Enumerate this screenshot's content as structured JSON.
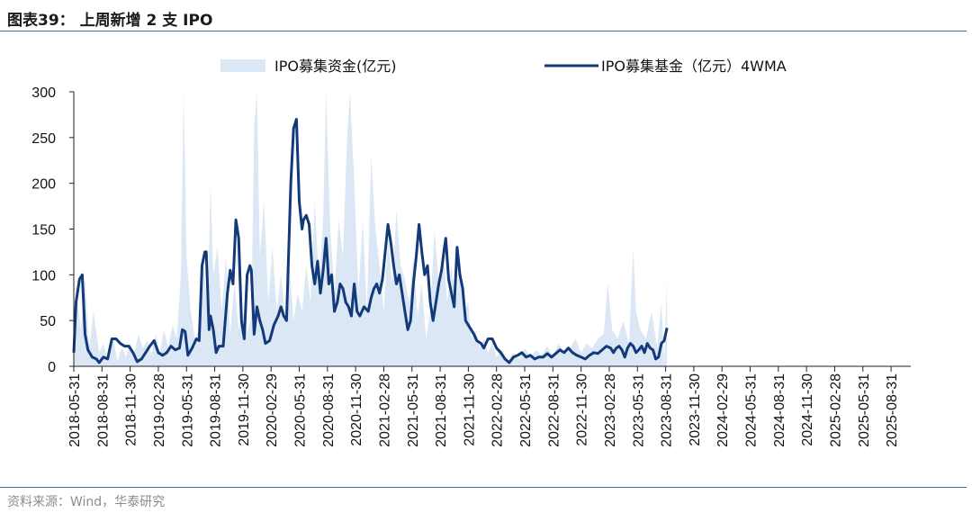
{
  "header": {
    "title": "图表39：   上周新增 2 支 IPO"
  },
  "footer": {
    "source": "资料来源：Wind，华泰研究"
  },
  "colors": {
    "area": "#dbe7f4",
    "line": "#12397a",
    "axis": "#222222",
    "rule": "#3a6ea5"
  },
  "chart_data": {
    "type": "area",
    "legend_position": "top",
    "grid": false,
    "ylim": [
      0,
      300
    ],
    "yticks": [
      0,
      50,
      100,
      150,
      200,
      250,
      300
    ],
    "xtick_labels": [
      "2018-05-31",
      "2018-08-31",
      "2018-11-30",
      "2019-02-28",
      "2019-05-31",
      "2019-08-31",
      "2019-11-30",
      "2020-02-29",
      "2020-05-31",
      "2020-08-31",
      "2020-11-30",
      "2021-02-28",
      "2021-05-31",
      "2021-08-31",
      "2021-11-30",
      "2022-02-28",
      "2022-05-31",
      "2022-08-31",
      "2022-11-30",
      "2023-02-28",
      "2023-05-31",
      "2023-08-31",
      "2023-11-30",
      "2024-02-29",
      "2024-05-31",
      "2024-08-31",
      "2024-11-30",
      "2025-02-28",
      "2025-05-31",
      "2025-08-31"
    ],
    "series": [
      {
        "name": "IPO募集资金(亿元)",
        "kind": "area",
        "values": [
          [
            0,
            10
          ],
          [
            0.1,
            80
          ],
          [
            0.25,
            40
          ],
          [
            0.4,
            95
          ],
          [
            0.55,
            20
          ],
          [
            0.7,
            60
          ],
          [
            0.9,
            15
          ],
          [
            1.05,
            25
          ],
          [
            1.2,
            8
          ],
          [
            1.4,
            30
          ],
          [
            1.55,
            5
          ],
          [
            1.7,
            20
          ],
          [
            1.85,
            10
          ],
          [
            2.0,
            25
          ],
          [
            2.15,
            15
          ],
          [
            2.3,
            35
          ],
          [
            2.45,
            20
          ],
          [
            2.6,
            28
          ],
          [
            2.75,
            12
          ],
          [
            2.9,
            35
          ],
          [
            3.05,
            15
          ],
          [
            3.2,
            40
          ],
          [
            3.35,
            20
          ],
          [
            3.5,
            45
          ],
          [
            3.65,
            30
          ],
          [
            3.8,
            100
          ],
          [
            3.9,
            300
          ],
          [
            4.0,
            120
          ],
          [
            4.15,
            60
          ],
          [
            4.3,
            30
          ],
          [
            4.45,
            40
          ],
          [
            4.6,
            110
          ],
          [
            4.75,
            60
          ],
          [
            4.85,
            200
          ],
          [
            4.95,
            100
          ],
          [
            5.1,
            130
          ],
          [
            5.25,
            60
          ],
          [
            5.4,
            120
          ],
          [
            5.55,
            35
          ],
          [
            5.7,
            90
          ],
          [
            5.85,
            40
          ],
          [
            6.0,
            60
          ],
          [
            6.15,
            35
          ],
          [
            6.3,
            55
          ],
          [
            6.4,
            260
          ],
          [
            6.5,
            300
          ],
          [
            6.6,
            120
          ],
          [
            6.75,
            180
          ],
          [
            6.9,
            70
          ],
          [
            7.05,
            130
          ],
          [
            7.2,
            60
          ],
          [
            7.35,
            100
          ],
          [
            7.5,
            55
          ],
          [
            7.65,
            110
          ],
          [
            7.8,
            50
          ],
          [
            7.95,
            80
          ],
          [
            8.1,
            60
          ],
          [
            8.25,
            110
          ],
          [
            8.4,
            70
          ],
          [
            8.55,
            180
          ],
          [
            8.7,
            90
          ],
          [
            8.85,
            160
          ],
          [
            8.95,
            300
          ],
          [
            9.1,
            150
          ],
          [
            9.25,
            80
          ],
          [
            9.4,
            160
          ],
          [
            9.55,
            120
          ],
          [
            9.7,
            250
          ],
          [
            9.8,
            300
          ],
          [
            9.95,
            200
          ],
          [
            10.1,
            80
          ],
          [
            10.25,
            160
          ],
          [
            10.4,
            60
          ],
          [
            10.55,
            230
          ],
          [
            10.7,
            150
          ],
          [
            10.85,
            110
          ],
          [
            11.0,
            60
          ],
          [
            11.15,
            140
          ],
          [
            11.3,
            90
          ],
          [
            11.45,
            170
          ],
          [
            11.6,
            110
          ],
          [
            11.75,
            95
          ],
          [
            11.9,
            70
          ],
          [
            12.05,
            120
          ],
          [
            12.2,
            55
          ],
          [
            12.35,
            90
          ],
          [
            12.5,
            30
          ],
          [
            12.65,
            60
          ],
          [
            12.8,
            150
          ],
          [
            12.95,
            90
          ],
          [
            13.1,
            130
          ],
          [
            13.25,
            70
          ],
          [
            13.4,
            110
          ],
          [
            13.55,
            65
          ],
          [
            13.7,
            120
          ],
          [
            13.85,
            60
          ],
          [
            14.0,
            70
          ],
          [
            14.1,
            30
          ],
          [
            14.25,
            40
          ],
          [
            14.4,
            20
          ],
          [
            14.55,
            30
          ],
          [
            14.7,
            15
          ],
          [
            14.85,
            25
          ],
          [
            15.0,
            10
          ],
          [
            15.2,
            18
          ],
          [
            15.4,
            5
          ],
          [
            15.6,
            15
          ],
          [
            15.8,
            8
          ],
          [
            16.0,
            20
          ],
          [
            16.2,
            10
          ],
          [
            16.4,
            18
          ],
          [
            16.6,
            12
          ],
          [
            16.8,
            22
          ],
          [
            17.0,
            10
          ],
          [
            17.2,
            25
          ],
          [
            17.4,
            15
          ],
          [
            17.6,
            20
          ],
          [
            17.8,
            30
          ],
          [
            18.0,
            15
          ],
          [
            18.2,
            25
          ],
          [
            18.4,
            20
          ],
          [
            18.6,
            30
          ],
          [
            18.8,
            35
          ],
          [
            18.95,
            90
          ],
          [
            19.1,
            40
          ],
          [
            19.3,
            30
          ],
          [
            19.5,
            50
          ],
          [
            19.7,
            25
          ],
          [
            19.85,
            130
          ],
          [
            19.95,
            60
          ],
          [
            20.1,
            40
          ],
          [
            20.3,
            30
          ],
          [
            20.5,
            60
          ],
          [
            20.7,
            20
          ],
          [
            20.85,
            70
          ],
          [
            20.95,
            5
          ],
          [
            21.05,
            95
          ]
        ]
      },
      {
        "name": "IPO募集基金（亿元）4WMA",
        "kind": "line",
        "values": [
          [
            0,
            15
          ],
          [
            0.08,
            70
          ],
          [
            0.2,
            95
          ],
          [
            0.3,
            100
          ],
          [
            0.4,
            35
          ],
          [
            0.5,
            18
          ],
          [
            0.65,
            10
          ],
          [
            0.8,
            8
          ],
          [
            0.9,
            4
          ],
          [
            1.05,
            10
          ],
          [
            1.2,
            8
          ],
          [
            1.35,
            30
          ],
          [
            1.5,
            30
          ],
          [
            1.65,
            25
          ],
          [
            1.8,
            22
          ],
          [
            1.95,
            22
          ],
          [
            2.1,
            15
          ],
          [
            2.25,
            5
          ],
          [
            2.4,
            8
          ],
          [
            2.55,
            15
          ],
          [
            2.7,
            22
          ],
          [
            2.85,
            28
          ],
          [
            3.0,
            15
          ],
          [
            3.15,
            12
          ],
          [
            3.3,
            15
          ],
          [
            3.45,
            22
          ],
          [
            3.6,
            18
          ],
          [
            3.75,
            20
          ],
          [
            3.85,
            40
          ],
          [
            3.95,
            38
          ],
          [
            4.05,
            12
          ],
          [
            4.2,
            20
          ],
          [
            4.35,
            30
          ],
          [
            4.45,
            28
          ],
          [
            4.55,
            110
          ],
          [
            4.65,
            125
          ],
          [
            4.7,
            125
          ],
          [
            4.8,
            40
          ],
          [
            4.85,
            55
          ],
          [
            4.95,
            40
          ],
          [
            5.05,
            15
          ],
          [
            5.15,
            22
          ],
          [
            5.3,
            22
          ],
          [
            5.45,
            80
          ],
          [
            5.55,
            105
          ],
          [
            5.65,
            90
          ],
          [
            5.75,
            160
          ],
          [
            5.85,
            140
          ],
          [
            5.95,
            50
          ],
          [
            6.05,
            30
          ],
          [
            6.15,
            100
          ],
          [
            6.25,
            110
          ],
          [
            6.3,
            105
          ],
          [
            6.4,
            35
          ],
          [
            6.5,
            65
          ],
          [
            6.6,
            50
          ],
          [
            6.7,
            40
          ],
          [
            6.8,
            25
          ],
          [
            6.95,
            28
          ],
          [
            7.1,
            45
          ],
          [
            7.25,
            55
          ],
          [
            7.35,
            65
          ],
          [
            7.45,
            55
          ],
          [
            7.55,
            50
          ],
          [
            7.7,
            200
          ],
          [
            7.8,
            260
          ],
          [
            7.9,
            270
          ],
          [
            8.0,
            180
          ],
          [
            8.1,
            150
          ],
          [
            8.15,
            160
          ],
          [
            8.25,
            165
          ],
          [
            8.35,
            155
          ],
          [
            8.45,
            110
          ],
          [
            8.55,
            90
          ],
          [
            8.65,
            115
          ],
          [
            8.75,
            80
          ],
          [
            8.85,
            105
          ],
          [
            8.95,
            140
          ],
          [
            9.05,
            90
          ],
          [
            9.15,
            100
          ],
          [
            9.25,
            60
          ],
          [
            9.35,
            70
          ],
          [
            9.45,
            90
          ],
          [
            9.55,
            85
          ],
          [
            9.65,
            70
          ],
          [
            9.75,
            65
          ],
          [
            9.85,
            55
          ],
          [
            9.95,
            90
          ],
          [
            10.05,
            60
          ],
          [
            10.15,
            55
          ],
          [
            10.3,
            65
          ],
          [
            10.45,
            60
          ],
          [
            10.55,
            75
          ],
          [
            10.65,
            85
          ],
          [
            10.75,
            90
          ],
          [
            10.85,
            80
          ],
          [
            10.95,
            95
          ],
          [
            11.05,
            125
          ],
          [
            11.15,
            155
          ],
          [
            11.25,
            135
          ],
          [
            11.35,
            110
          ],
          [
            11.45,
            90
          ],
          [
            11.55,
            100
          ],
          [
            11.65,
            80
          ],
          [
            11.75,
            60
          ],
          [
            11.85,
            40
          ],
          [
            11.95,
            50
          ],
          [
            12.05,
            90
          ],
          [
            12.15,
            120
          ],
          [
            12.25,
            155
          ],
          [
            12.35,
            125
          ],
          [
            12.45,
            100
          ],
          [
            12.55,
            110
          ],
          [
            12.65,
            70
          ],
          [
            12.75,
            50
          ],
          [
            12.85,
            70
          ],
          [
            12.95,
            90
          ],
          [
            13.05,
            105
          ],
          [
            13.15,
            130
          ],
          [
            13.2,
            140
          ],
          [
            13.3,
            95
          ],
          [
            13.4,
            80
          ],
          [
            13.5,
            65
          ],
          [
            13.6,
            130
          ],
          [
            13.7,
            100
          ],
          [
            13.8,
            85
          ],
          [
            13.9,
            50
          ],
          [
            14.0,
            45
          ],
          [
            14.1,
            40
          ],
          [
            14.2,
            35
          ],
          [
            14.3,
            28
          ],
          [
            14.45,
            25
          ],
          [
            14.55,
            20
          ],
          [
            14.7,
            30
          ],
          [
            14.85,
            30
          ],
          [
            15.0,
            20
          ],
          [
            15.15,
            15
          ],
          [
            15.3,
            8
          ],
          [
            15.45,
            4
          ],
          [
            15.6,
            10
          ],
          [
            15.75,
            12
          ],
          [
            15.9,
            15
          ],
          [
            16.05,
            10
          ],
          [
            16.2,
            12
          ],
          [
            16.35,
            8
          ],
          [
            16.5,
            10
          ],
          [
            16.65,
            10
          ],
          [
            16.8,
            14
          ],
          [
            16.95,
            10
          ],
          [
            17.1,
            14
          ],
          [
            17.25,
            18
          ],
          [
            17.4,
            15
          ],
          [
            17.55,
            20
          ],
          [
            17.7,
            15
          ],
          [
            17.85,
            12
          ],
          [
            18.0,
            10
          ],
          [
            18.15,
            8
          ],
          [
            18.3,
            12
          ],
          [
            18.45,
            15
          ],
          [
            18.6,
            14
          ],
          [
            18.75,
            18
          ],
          [
            18.9,
            22
          ],
          [
            19.05,
            20
          ],
          [
            19.15,
            15
          ],
          [
            19.25,
            20
          ],
          [
            19.35,
            22
          ],
          [
            19.45,
            18
          ],
          [
            19.55,
            10
          ],
          [
            19.65,
            20
          ],
          [
            19.75,
            25
          ],
          [
            19.85,
            22
          ],
          [
            19.95,
            15
          ],
          [
            20.05,
            18
          ],
          [
            20.15,
            22
          ],
          [
            20.25,
            15
          ],
          [
            20.35,
            25
          ],
          [
            20.45,
            20
          ],
          [
            20.55,
            18
          ],
          [
            20.65,
            8
          ],
          [
            20.75,
            10
          ],
          [
            20.85,
            25
          ],
          [
            20.95,
            28
          ],
          [
            21.05,
            42
          ]
        ]
      }
    ]
  }
}
